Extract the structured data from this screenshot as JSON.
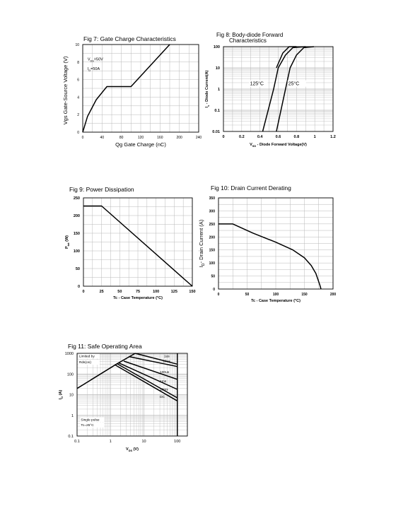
{
  "chart_data": [
    {
      "id": "fig7",
      "type": "line",
      "title": "Fig 7: Gate Charge Characteristics",
      "xlabel": "Qg Gate Charge (nC)",
      "ylabel": "Vgs Gate-Source Voltage (V)",
      "xlim": [
        0,
        240
      ],
      "ylim": [
        0,
        10
      ],
      "xticks": [
        0,
        40,
        80,
        120,
        160,
        200,
        240
      ],
      "xtick_labels": [
        "0",
        "40",
        "80",
        "120",
        "160",
        "200",
        "240"
      ],
      "yticks": [
        0,
        2,
        4,
        6,
        8,
        10
      ],
      "ytick_labels": [
        "0",
        "2",
        "4",
        "6",
        "8",
        "10"
      ],
      "grid": true,
      "annotations": [
        {
          "text": "V",
          "sub": "DS",
          "suffix": "=50V",
          "x": 10,
          "y": 8.2
        },
        {
          "text": "I",
          "sub": "D",
          "suffix": "=50A",
          "x": 10,
          "y": 7.1
        }
      ],
      "series": [
        {
          "x": [
            0,
            10,
            28,
            50,
            100,
            180
          ],
          "y": [
            0,
            1.8,
            3.7,
            5.2,
            5.2,
            10.0
          ]
        }
      ]
    },
    {
      "id": "fig8",
      "type": "line",
      "title": "Fig 8: Body-diode Forward Characteristics",
      "title_lines": [
        "Fig 8: Body-diode Forward",
        "Characteristics"
      ],
      "xlabel": "V",
      "xlabel_sub": "SD",
      "xlabel_suffix": " - Diode Forward Voltage(V)",
      "ylabel": "I",
      "ylabel_sub": "s",
      "ylabel_suffix": " - Diode Current(A)",
      "xlim": [
        0,
        1.2
      ],
      "yscale": "log",
      "ylim": [
        0.01,
        100
      ],
      "xticks": [
        0,
        0.2,
        0.4,
        0.6,
        0.8,
        1,
        1.2
      ],
      "xtick_labels": [
        "0",
        "0.2",
        "0.4",
        "0.6",
        "0.8",
        "1",
        "1.2"
      ],
      "yticks": [
        0.01,
        0.1,
        1,
        10,
        100
      ],
      "ytick_labels": [
        "0.01",
        "0.1",
        "1",
        "10",
        "100"
      ],
      "grid": true,
      "annotations": [
        {
          "text": "125°C",
          "x": 0.29,
          "y": 1.5
        },
        {
          "text": "25°C",
          "x": 0.71,
          "y": 1.5
        }
      ],
      "series": [
        {
          "name": "125°C",
          "x": [
            0.43,
            0.55,
            0.6,
            0.68,
            0.76,
            0.9
          ],
          "y": [
            0.01,
            1,
            10,
            40,
            90,
            150
          ]
        },
        {
          "name": "125°C upper",
          "x": [
            0.58,
            0.65,
            0.72,
            0.8
          ],
          "y": [
            10,
            50,
            110,
            150
          ]
        },
        {
          "name": "25°C",
          "x": [
            0.58,
            0.68,
            0.73,
            0.8,
            0.88,
            0.99
          ],
          "y": [
            0.01,
            1,
            10,
            40,
            90,
            150
          ]
        }
      ]
    },
    {
      "id": "fig9",
      "type": "line",
      "title": "Fig 9: Power Dissipation",
      "xlabel": "Tc - Case Temperature (°C)",
      "ylabel": "P",
      "ylabel_sub": "tot",
      "ylabel_suffix": " (W)",
      "xlim": [
        0,
        150
      ],
      "ylim": [
        0,
        250
      ],
      "xticks": [
        0,
        25,
        50,
        75,
        100,
        125,
        150
      ],
      "xtick_labels": [
        "0",
        "25",
        "50",
        "75",
        "100",
        "125",
        "150"
      ],
      "yticks": [
        0,
        50,
        100,
        150,
        200,
        250
      ],
      "ytick_labels": [
        "0",
        "50",
        "100",
        "150",
        "200",
        "250"
      ],
      "grid": true,
      "series": [
        {
          "x": [
            0,
            25,
            150
          ],
          "y": [
            227,
            227,
            0
          ]
        }
      ]
    },
    {
      "id": "fig10",
      "type": "line",
      "title": "Fig 10: Drain Current Derating",
      "xlabel": "Tc - Case Temperature (°C)",
      "ylabel": "I",
      "ylabel_sub": "D",
      "ylabel_suffix": "- Drain Current (A)",
      "xlim": [
        0,
        200
      ],
      "ylim": [
        0,
        350
      ],
      "xticks": [
        0,
        50,
        100,
        150,
        200
      ],
      "xtick_labels": [
        "0",
        "50",
        "100",
        "150",
        "200"
      ],
      "yticks": [
        0,
        50,
        100,
        150,
        200,
        250,
        300,
        350
      ],
      "ytick_labels": [
        "0",
        "50",
        "100",
        "150",
        "200",
        "250",
        "300",
        "350"
      ],
      "grid": true,
      "series": [
        {
          "x": [
            0,
            25,
            60,
            100,
            130,
            150,
            162,
            170,
            174,
            177,
            179
          ],
          "y": [
            250,
            250,
            215,
            180,
            150,
            120,
            90,
            60,
            35,
            15,
            0
          ]
        }
      ]
    },
    {
      "id": "fig11",
      "type": "line",
      "title": "Fig 11: Safe Operating Area",
      "xlabel": "V",
      "xlabel_sub": "DS",
      "xlabel_suffix": " (V)",
      "ylabel": "I",
      "ylabel_sub": "D",
      "ylabel_suffix": " (A)",
      "xscale": "log",
      "yscale": "log",
      "xlim": [
        0.1,
        200
      ],
      "ylim": [
        0.1,
        1000
      ],
      "xticks": [
        0.1,
        1,
        10,
        100
      ],
      "xtick_labels": [
        "0.1",
        "1",
        "10",
        "100"
      ],
      "yticks": [
        0.1,
        1,
        10,
        100,
        1000
      ],
      "ytick_labels": [
        "0.1",
        "1",
        "10",
        "100",
        "1000"
      ],
      "grid": true,
      "annotations": [
        {
          "text": "Limited by",
          "x": 0.115,
          "y": 650
        },
        {
          "text": "Rds(on)",
          "x": 0.115,
          "y": 330
        },
        {
          "text": "Single pulse",
          "x": 0.13,
          "y": 0.55
        },
        {
          "text": "Tc=25°C",
          "x": 0.13,
          "y": 0.3
        },
        {
          "text": "1us",
          "x": 40,
          "y": 650
        },
        {
          "text": "10us",
          "x": 37,
          "y": 370
        },
        {
          "text": "100us",
          "x": 30,
          "y": 110
        },
        {
          "text": "1ms",
          "x": 30,
          "y": 40
        },
        {
          "text": "10ms",
          "x": 30,
          "y": 16
        },
        {
          "text": "DC",
          "x": 30,
          "y": 7
        }
      ],
      "series": [
        {
          "name": "Limited by Rds(on)",
          "x": [
            0.1,
            1.5,
            5.5
          ],
          "y": [
            20,
            300,
            1000
          ]
        },
        {
          "name": "1us",
          "x": [
            5.5,
            100
          ],
          "y": [
            1000,
            300
          ]
        },
        {
          "name": "10us",
          "x": [
            3.5,
            100
          ],
          "y": [
            700,
            230
          ]
        },
        {
          "name": "100us",
          "x": [
            2.5,
            100
          ],
          "y": [
            420,
            55
          ]
        },
        {
          "name": "1ms",
          "x": [
            1.8,
            100
          ],
          "y": [
            340,
            18
          ]
        },
        {
          "name": "10ms",
          "x": [
            1.6,
            100
          ],
          "y": [
            310,
            7
          ]
        },
        {
          "name": "DC",
          "x": [
            1.4,
            100
          ],
          "y": [
            270,
            5
          ]
        },
        {
          "name": "Vds max",
          "x": [
            100,
            100
          ],
          "y": [
            0.1,
            1000
          ]
        }
      ]
    }
  ]
}
